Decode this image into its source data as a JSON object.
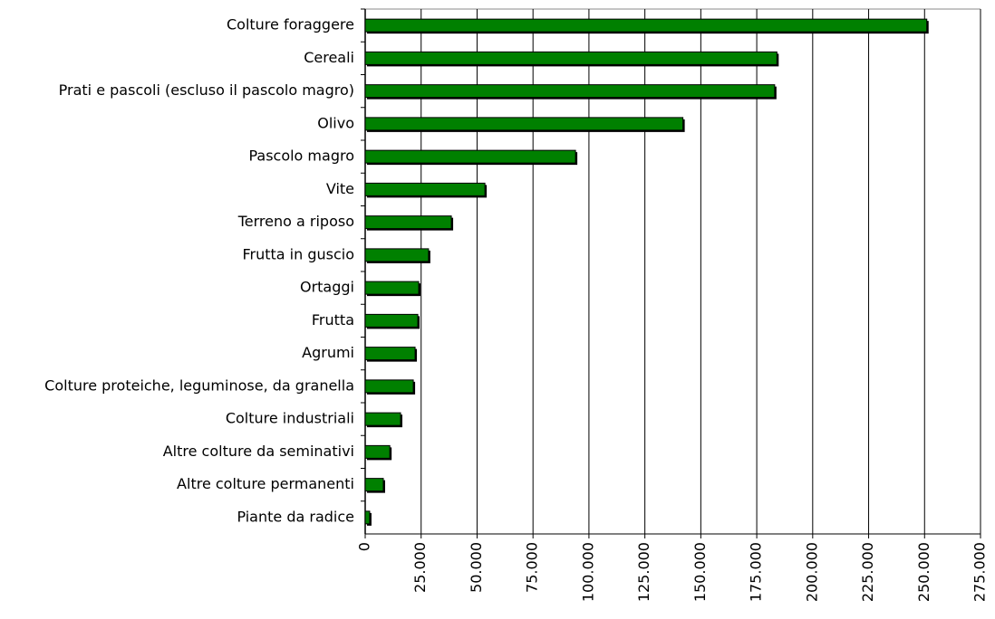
{
  "chart_data": {
    "type": "bar",
    "orientation": "horizontal",
    "categories": [
      "Colture foraggere",
      "Cereali",
      "Prati e pascoli (escluso il pascolo magro)",
      "Olivo",
      "Pascolo magro",
      "Vite",
      "Terreno a riposo",
      "Frutta in guscio",
      "Ortaggi",
      "Frutta",
      "Agrumi",
      "Colture proteiche, leguminose, da granella",
      "Colture industriali",
      "Altre colture da seminativi",
      "Altre colture permanenti",
      "Piante da radice"
    ],
    "values": [
      251000,
      184000,
      183000,
      142000,
      94000,
      53500,
      38500,
      28300,
      23900,
      23500,
      22300,
      21500,
      15800,
      11000,
      8100,
      2000
    ],
    "color": "#008000",
    "xlim": [
      0,
      275000
    ],
    "xticks": [
      0,
      {
        "value": 25000,
        "label": "25.000"
      },
      {
        "value": 50000,
        "label": "50.000"
      },
      {
        "value": 75000,
        "label": "75.000"
      },
      {
        "value": 100000,
        "label": "100.000"
      },
      {
        "value": 125000,
        "label": "125.000"
      },
      {
        "value": 150000,
        "label": "150.000"
      },
      {
        "value": 175000,
        "label": "175.000"
      },
      {
        "value": 200000,
        "label": "200.000"
      },
      {
        "value": 225000,
        "label": "225.000"
      },
      {
        "value": 250000,
        "label": "250.000"
      },
      {
        "value": 275000,
        "label": "275.000"
      }
    ],
    "grid": true
  }
}
